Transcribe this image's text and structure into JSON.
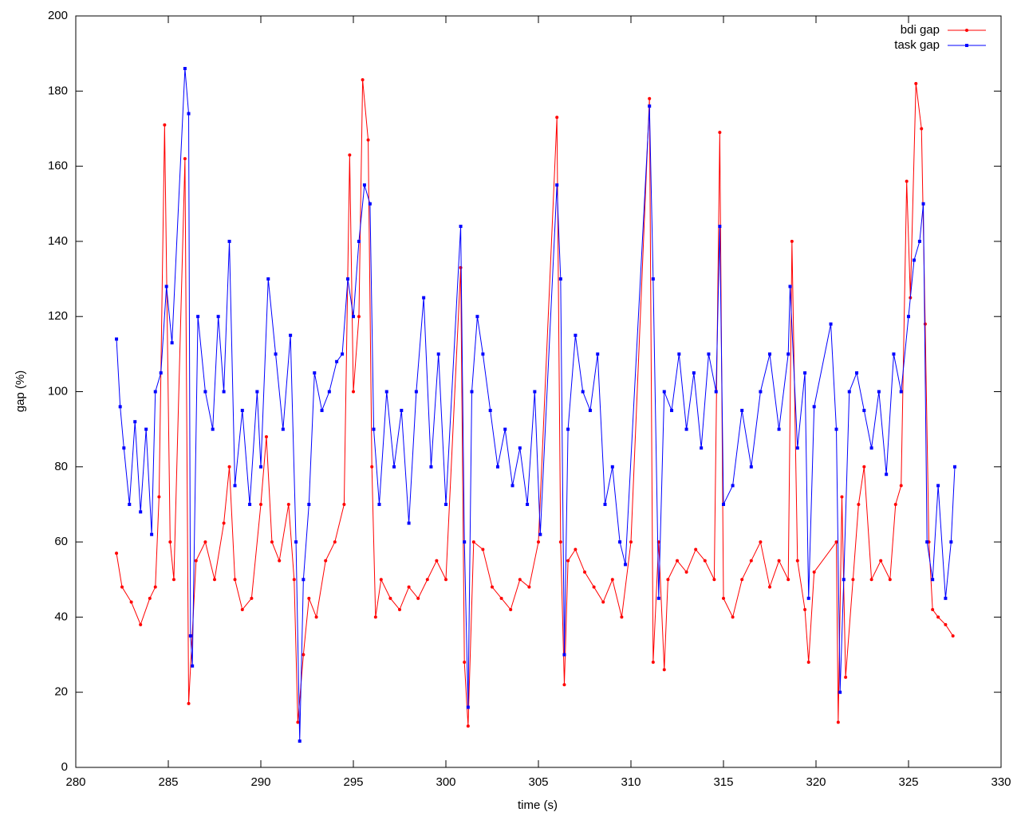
{
  "chart_data": {
    "type": "line",
    "xlabel": "time (s)",
    "ylabel": "gap (%)",
    "xlim": [
      280,
      330
    ],
    "xticks": [
      280,
      285,
      290,
      295,
      300,
      305,
      310,
      315,
      320,
      325,
      330
    ],
    "ylim": [
      0,
      200
    ],
    "yticks": [
      0,
      20,
      40,
      60,
      80,
      100,
      120,
      140,
      160,
      180,
      200
    ],
    "legend": "top-right",
    "series": [
      {
        "name": "bdi gap",
        "color": "#ff0000",
        "marker": "circle",
        "x": [
          282.2,
          282.5,
          283,
          283.5,
          284,
          284.3,
          284.5,
          284.8,
          285.1,
          285.3,
          285.9,
          286.1,
          286.5,
          287,
          287.5,
          288,
          288.3,
          288.6,
          289,
          289.5,
          290,
          290.3,
          290.6,
          291,
          291.5,
          291.8,
          292,
          292.3,
          292.6,
          293,
          293.5,
          294,
          294.5,
          294.8,
          295,
          295.3,
          295.5,
          295.8,
          296,
          296.2,
          296.5,
          297,
          297.5,
          298,
          298.5,
          299,
          299.5,
          300,
          300.8,
          301,
          301.2,
          301.5,
          302,
          302.5,
          303,
          303.5,
          304,
          304.5,
          305,
          306,
          306.2,
          306.4,
          306.6,
          307,
          307.5,
          308,
          308.5,
          309,
          309.5,
          310,
          311,
          311.2,
          311.5,
          311.8,
          312,
          312.5,
          313,
          313.5,
          314,
          314.5,
          314.8,
          315,
          315.5,
          316,
          316.5,
          317,
          317.5,
          318,
          318.5,
          318.7,
          319,
          319.4,
          319.6,
          319.9,
          321.1,
          321.2,
          321.4,
          321.6,
          322,
          322.3,
          322.6,
          323,
          323.5,
          324,
          324.3,
          324.6,
          324.9,
          325.1,
          325.4,
          325.7,
          325.9,
          326.1,
          326.3,
          326.6,
          327,
          327.4
        ],
        "values": [
          57,
          48,
          44,
          38,
          45,
          48,
          72,
          171,
          60,
          50,
          162,
          17,
          55,
          60,
          50,
          65,
          80,
          50,
          42,
          45,
          70,
          88,
          60,
          55,
          70,
          50,
          12,
          30,
          45,
          40,
          55,
          60,
          70,
          163,
          100,
          120,
          183,
          167,
          80,
          40,
          50,
          45,
          42,
          48,
          45,
          50,
          55,
          50,
          133,
          28,
          11,
          60,
          58,
          48,
          45,
          42,
          50,
          48,
          60,
          173,
          60,
          22,
          55,
          58,
          52,
          48,
          44,
          50,
          40,
          60,
          178,
          28,
          60,
          26,
          50,
          55,
          52,
          58,
          55,
          50,
          169,
          45,
          40,
          50,
          55,
          60,
          48,
          55,
          50,
          140,
          55,
          42,
          28,
          52,
          60,
          12,
          72,
          24,
          50,
          70,
          80,
          50,
          55,
          50,
          70,
          75,
          156,
          125,
          182,
          170,
          118,
          60,
          42,
          40,
          38,
          35
        ]
      },
      {
        "name": "task gap",
        "color": "#0000ff",
        "marker": "square",
        "x": [
          282.2,
          282.4,
          282.6,
          282.9,
          283.2,
          283.5,
          283.8,
          284.1,
          284.3,
          284.6,
          284.9,
          285.2,
          285.9,
          286.1,
          286.2,
          286.3,
          286.6,
          287,
          287.4,
          287.7,
          288,
          288.3,
          288.6,
          289,
          289.4,
          289.8,
          290,
          290.4,
          290.8,
          291.2,
          291.6,
          291.9,
          292.1,
          292.3,
          292.6,
          292.9,
          293.3,
          293.7,
          294.1,
          294.4,
          294.7,
          295,
          295.3,
          295.6,
          295.9,
          296.1,
          296.4,
          296.8,
          297.2,
          297.6,
          298,
          298.4,
          298.8,
          299.2,
          299.6,
          300,
          300.8,
          301,
          301.2,
          301.4,
          301.7,
          302,
          302.4,
          302.8,
          303.2,
          303.6,
          304,
          304.4,
          304.8,
          305.1,
          306,
          306.2,
          306.4,
          306.6,
          307,
          307.4,
          307.8,
          308.2,
          308.6,
          309,
          309.4,
          309.7,
          311,
          311.2,
          311.5,
          311.8,
          312.2,
          312.6,
          313,
          313.4,
          313.8,
          314.2,
          314.6,
          314.8,
          315,
          315.5,
          316,
          316.5,
          317,
          317.5,
          318,
          318.5,
          318.6,
          319,
          319.4,
          319.6,
          319.9,
          320.8,
          321.1,
          321.3,
          321.5,
          321.8,
          322.2,
          322.6,
          323,
          323.4,
          323.8,
          324.2,
          324.6,
          325,
          325.3,
          325.6,
          325.8,
          326,
          326.3,
          326.6,
          327,
          327.3,
          327.5
        ],
        "values": [
          114,
          96,
          85,
          70,
          92,
          68,
          90,
          62,
          100,
          105,
          128,
          113,
          186,
          174,
          35,
          27,
          120,
          100,
          90,
          120,
          100,
          140,
          75,
          95,
          70,
          100,
          80,
          130,
          110,
          90,
          115,
          60,
          7,
          50,
          70,
          105,
          95,
          100,
          108,
          110,
          130,
          120,
          140,
          155,
          150,
          90,
          70,
          100,
          80,
          95,
          65,
          100,
          125,
          80,
          110,
          70,
          144,
          60,
          16,
          100,
          120,
          110,
          95,
          80,
          90,
          75,
          85,
          70,
          100,
          62,
          155,
          130,
          30,
          90,
          115,
          100,
          95,
          110,
          70,
          80,
          60,
          54,
          176,
          130,
          45,
          100,
          95,
          110,
          90,
          105,
          85,
          110,
          100,
          144,
          70,
          75,
          95,
          80,
          100,
          110,
          90,
          110,
          128,
          85,
          105,
          45,
          96,
          118,
          90,
          20,
          50,
          100,
          105,
          95,
          85,
          100,
          78,
          110,
          100,
          120,
          135,
          140,
          150,
          60,
          50,
          75,
          45,
          60,
          80
        ]
      }
    ]
  }
}
